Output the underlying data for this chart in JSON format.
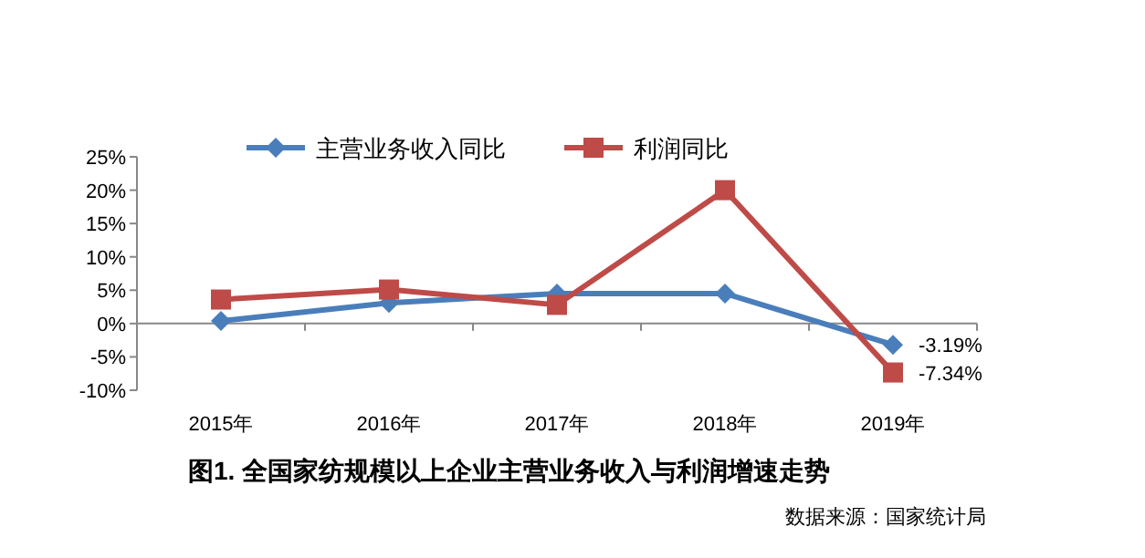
{
  "chart_data": {
    "type": "line",
    "title": "图1. 全国家纺规模以上企业主营业务收入与利润增速走势",
    "annotations": [
      "数据来源：国家统计局"
    ],
    "categories": [
      "2015年",
      "2016年",
      "2017年",
      "2018年",
      "2019年"
    ],
    "series": [
      {
        "name": "主营业务收入同比",
        "color": "#4a7ebb",
        "marker": "diamond",
        "values": [
          0.4,
          3.1,
          4.5,
          4.5,
          -3.19
        ],
        "value_labels": [
          null,
          null,
          null,
          null,
          "-3.19%"
        ]
      },
      {
        "name": "利润同比",
        "color": "#be4b48",
        "marker": "square",
        "values": [
          3.6,
          5.1,
          2.8,
          20.0,
          -7.34
        ],
        "value_labels": [
          null,
          null,
          null,
          null,
          "-7.34%"
        ]
      }
    ],
    "ylim": [
      -10,
      25
    ],
    "yticks": [
      {
        "value": -10,
        "label": "-10%"
      },
      {
        "value": -5,
        "label": "-5%"
      },
      {
        "value": 0,
        "label": "0%"
      },
      {
        "value": 5,
        "label": "5%"
      },
      {
        "value": 10,
        "label": "10%"
      },
      {
        "value": 15,
        "label": "15%"
      },
      {
        "value": 20,
        "label": "20%"
      },
      {
        "value": 25,
        "label": "25%"
      }
    ],
    "legend": "top"
  }
}
